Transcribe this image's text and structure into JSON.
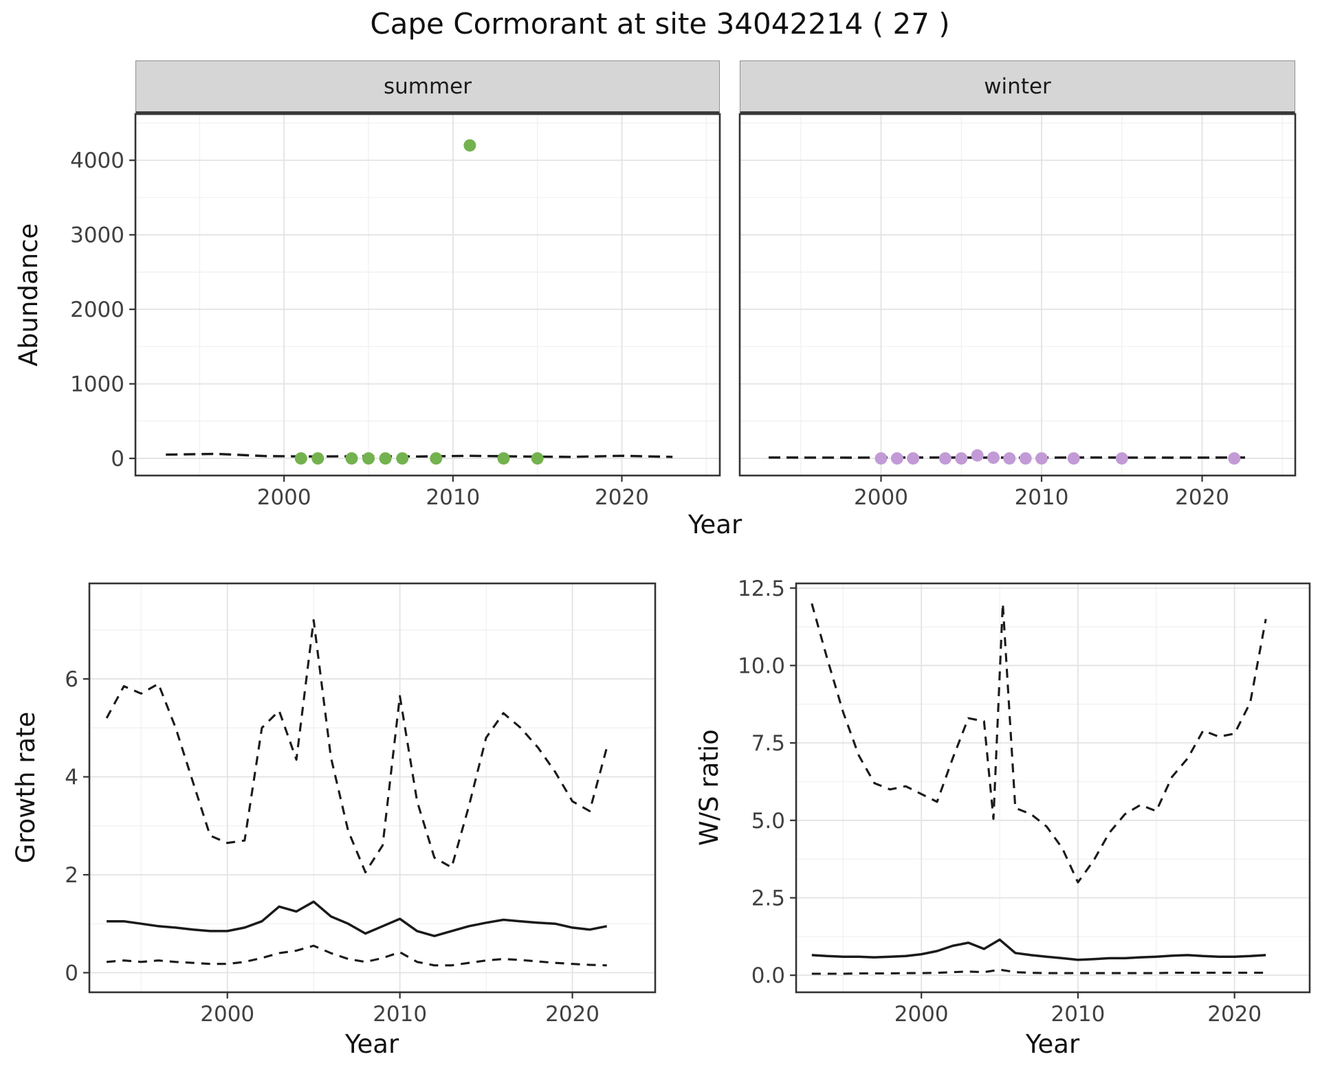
{
  "title": "Cape Cormorant at site 34042214 ( 27 )",
  "colors": {
    "summer_point": "#73B24E",
    "winter_point": "#C29BD6",
    "line": "#1A1A1A",
    "strip_bg": "#D6D6D6",
    "panel_border": "#333333",
    "grid_major": "#E3E3E3",
    "grid_minor": "#F1F1F1",
    "tick_label": "#404040"
  },
  "chart_data": [
    {
      "id": "abundance",
      "type": "scatter",
      "xlabel": "Year",
      "ylabel": "Abundance",
      "xlim": [
        1991.2,
        2025.8
      ],
      "ylim": [
        -230,
        4620
      ],
      "xticks": [
        2000,
        2010,
        2020
      ],
      "xtick_labels": [
        "2000",
        "2010",
        "2020"
      ],
      "xminor": [
        1995,
        2005,
        2015,
        2025
      ],
      "yticks": [
        0,
        1000,
        2000,
        3000,
        4000
      ],
      "ytick_labels": [
        "0",
        "1000",
        "2000",
        "3000",
        "4000"
      ],
      "yminor": [
        500,
        1500,
        2500,
        3500,
        4500
      ],
      "facets": [
        {
          "label": "summer",
          "point_color": "#73B24E",
          "points": {
            "x": [
              2001,
              2002,
              2004,
              2005,
              2006,
              2007,
              2009,
              2011,
              2013,
              2015
            ],
            "y": [
              0,
              0,
              0,
              0,
              0,
              0,
              0,
              4200,
              0,
              0
            ]
          },
          "fit_line": {
            "dashed": true,
            "x": [
              1993,
              1996,
              1999,
              2002,
              2005,
              2008,
              2011,
              2014,
              2017,
              2020,
              2023
            ],
            "y": [
              50,
              60,
              30,
              25,
              30,
              25,
              35,
              25,
              20,
              35,
              20
            ]
          }
        },
        {
          "label": "winter",
          "point_color": "#C29BD6",
          "points": {
            "x": [
              2000,
              2001,
              2002,
              2004,
              2005,
              2006,
              2007,
              2008,
              2009,
              2010,
              2012,
              2015,
              2022
            ],
            "y": [
              0,
              0,
              0,
              0,
              0,
              40,
              10,
              0,
              0,
              0,
              0,
              0,
              0
            ]
          },
          "fit_line": {
            "dashed": true,
            "x": [
              1993,
              1998,
              2003,
              2008,
              2013,
              2018,
              2023
            ],
            "y": [
              12,
              10,
              12,
              10,
              12,
              10,
              12
            ]
          }
        }
      ]
    },
    {
      "id": "growth_rate",
      "type": "line",
      "xlabel": "Year",
      "ylabel": "Growth rate",
      "xlim": [
        1992,
        2024.8
      ],
      "ylim": [
        -0.4,
        7.95
      ],
      "xticks": [
        2000,
        2010,
        2020
      ],
      "xtick_labels": [
        "2000",
        "2010",
        "2020"
      ],
      "xminor": [
        1995,
        2005,
        2015
      ],
      "yticks": [
        0,
        2,
        4,
        6
      ],
      "ytick_labels": [
        "0",
        "2",
        "4",
        "6"
      ],
      "yminor": [
        1,
        3,
        5,
        7
      ],
      "x": [
        1993,
        1994,
        1995,
        1996,
        1997,
        1998,
        1999,
        2000,
        2001,
        2002,
        2003,
        2004,
        2005,
        2006,
        2007,
        2008,
        2009,
        2010,
        2011,
        2012,
        2013,
        2014,
        2015,
        2016,
        2017,
        2018,
        2019,
        2020,
        2021,
        2022
      ],
      "series": [
        {
          "name": "median",
          "style": "solid",
          "values": [
            1.05,
            1.05,
            1.0,
            0.95,
            0.92,
            0.88,
            0.85,
            0.85,
            0.92,
            1.05,
            1.35,
            1.25,
            1.45,
            1.15,
            1.0,
            0.8,
            0.95,
            1.1,
            0.85,
            0.75,
            0.85,
            0.95,
            1.02,
            1.08,
            1.05,
            1.02,
            1.0,
            0.92,
            0.88,
            0.95
          ]
        },
        {
          "name": "upper_ci",
          "style": "dashed",
          "values": [
            5.2,
            5.85,
            5.7,
            5.9,
            5.0,
            3.9,
            2.8,
            2.65,
            2.7,
            5.0,
            5.35,
            4.35,
            7.2,
            4.4,
            2.9,
            2.05,
            2.6,
            5.65,
            3.5,
            2.35,
            2.15,
            3.4,
            4.8,
            5.3,
            5.0,
            4.6,
            4.1,
            3.5,
            3.3,
            4.6
          ]
        },
        {
          "name": "lower_ci",
          "style": "dashed",
          "values": [
            0.22,
            0.25,
            0.22,
            0.25,
            0.22,
            0.2,
            0.18,
            0.18,
            0.22,
            0.3,
            0.4,
            0.45,
            0.55,
            0.4,
            0.28,
            0.22,
            0.3,
            0.42,
            0.22,
            0.15,
            0.15,
            0.2,
            0.25,
            0.28,
            0.26,
            0.23,
            0.2,
            0.18,
            0.16,
            0.15
          ]
        }
      ]
    },
    {
      "id": "ws_ratio",
      "type": "line",
      "xlabel": "Year",
      "ylabel": "W/S ratio",
      "xlim": [
        1992,
        2024.8
      ],
      "ylim": [
        -0.55,
        12.65
      ],
      "xticks": [
        2000,
        2010,
        2020
      ],
      "xtick_labels": [
        "2000",
        "2010",
        "2020"
      ],
      "xminor": [
        1995,
        2005,
        2015
      ],
      "yticks": [
        0,
        2.5,
        5,
        7.5,
        10,
        12.5
      ],
      "ytick_labels": [
        "0.0",
        "2.5",
        "5.0",
        "7.5",
        "10.0",
        "12.5"
      ],
      "yminor": [
        1.25,
        3.75,
        6.25,
        8.75,
        11.25
      ],
      "x": [
        1993,
        1994,
        1995,
        1996,
        1997,
        1998,
        1999,
        2000,
        2001,
        2002,
        2003,
        2004,
        2005,
        2006,
        2007,
        2008,
        2009,
        2010,
        2011,
        2012,
        2013,
        2014,
        2015,
        2016,
        2017,
        2018,
        2019,
        2020,
        2021,
        2022
      ],
      "series": [
        {
          "name": "median",
          "style": "solid",
          "values": [
            0.65,
            0.62,
            0.6,
            0.6,
            0.58,
            0.6,
            0.62,
            0.68,
            0.78,
            0.95,
            1.05,
            0.85,
            1.15,
            0.72,
            0.65,
            0.6,
            0.55,
            0.5,
            0.52,
            0.55,
            0.55,
            0.58,
            0.6,
            0.63,
            0.65,
            0.62,
            0.6,
            0.6,
            0.62,
            0.65
          ]
        },
        {
          "name": "upper_ci",
          "style": "dashed",
          "x": [
            1993,
            1994,
            1995,
            1996,
            1997,
            1998,
            1999,
            2000,
            2001,
            2002,
            2003,
            2004,
            2004.6,
            2005.2,
            2006,
            2007,
            2008,
            2009,
            2010,
            2011,
            2012,
            2013,
            2014,
            2015,
            2016,
            2017,
            2018,
            2019,
            2020,
            2021,
            2022
          ],
          "values": [
            12.0,
            10.2,
            8.5,
            7.1,
            6.2,
            6.0,
            6.1,
            5.85,
            5.6,
            7.0,
            8.3,
            8.2,
            5.05,
            12.0,
            5.4,
            5.2,
            4.8,
            4.1,
            3.0,
            3.7,
            4.6,
            5.2,
            5.5,
            5.3,
            6.4,
            7.0,
            7.9,
            7.7,
            7.8,
            8.8,
            11.5
          ]
        },
        {
          "name": "lower_ci",
          "style": "dashed",
          "values": [
            0.05,
            0.05,
            0.05,
            0.06,
            0.06,
            0.06,
            0.07,
            0.07,
            0.08,
            0.1,
            0.12,
            0.1,
            0.18,
            0.1,
            0.08,
            0.07,
            0.07,
            0.07,
            0.07,
            0.07,
            0.07,
            0.07,
            0.07,
            0.08,
            0.08,
            0.08,
            0.08,
            0.08,
            0.08,
            0.08
          ]
        }
      ]
    }
  ]
}
